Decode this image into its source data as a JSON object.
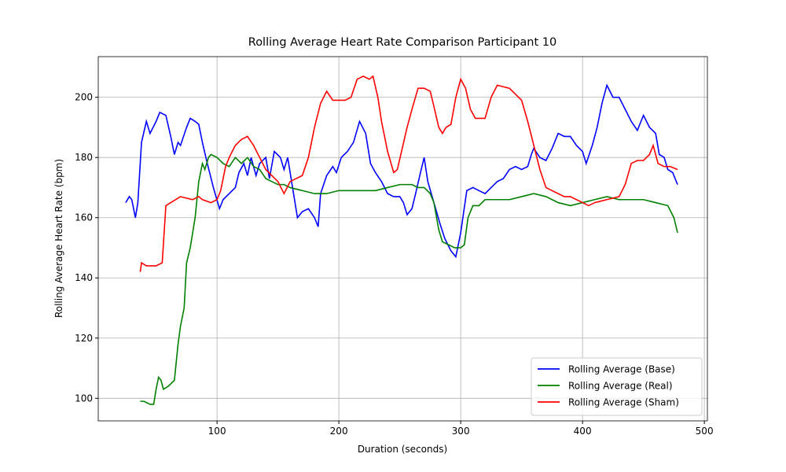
{
  "chart_data": {
    "type": "line",
    "title": "Rolling Average Heart Rate Comparison Participant 10",
    "x_label": "Duration (seconds)",
    "y_label": "Rolling Average Heart Rate (bpm)",
    "xlim": [
      2.5,
      502.5
    ],
    "ylim": [
      92.5,
      213.5
    ],
    "xticks": [
      100,
      200,
      300,
      400,
      500
    ],
    "yticks": [
      100,
      120,
      140,
      160,
      180,
      200
    ],
    "grid": true,
    "legend": "lower right",
    "series": [
      {
        "name": "Rolling Average (Base)",
        "color": "#0000ff",
        "x": [
          25,
          28,
          30,
          33,
          35,
          38,
          42,
          45,
          50,
          53,
          58,
          62,
          65,
          68,
          70,
          75,
          78,
          82,
          85,
          88,
          92,
          97,
          102,
          105,
          110,
          115,
          118,
          122,
          125,
          128,
          132,
          135,
          140,
          143,
          147,
          152,
          155,
          158,
          162,
          166,
          170,
          175,
          180,
          183,
          185,
          190,
          195,
          198,
          202,
          207,
          212,
          217,
          222,
          226,
          230,
          235,
          240,
          245,
          250,
          253,
          256,
          260,
          263,
          267,
          270,
          273,
          278,
          283,
          287,
          292,
          296,
          300,
          305,
          310,
          315,
          320,
          325,
          330,
          335,
          340,
          345,
          350,
          355,
          358,
          360,
          365,
          370,
          375,
          380,
          385,
          390,
          395,
          400,
          403,
          408,
          412,
          416,
          420,
          425,
          430,
          435,
          440,
          445,
          450,
          455,
          460,
          463,
          467,
          470,
          474,
          478
        ],
        "values": [
          165,
          167,
          166,
          160,
          165,
          185,
          192,
          188,
          192,
          195,
          194,
          187,
          181,
          185,
          184,
          190,
          193,
          192,
          191,
          185,
          178,
          170,
          163,
          166,
          168,
          170,
          175,
          178,
          174,
          180,
          174,
          178,
          180,
          173,
          182,
          180,
          176,
          180,
          170,
          160,
          162,
          163,
          160,
          157,
          168,
          174,
          177,
          175,
          180,
          182,
          185,
          192,
          188,
          178,
          175,
          172,
          168,
          167,
          167,
          165,
          161,
          163,
          168,
          175,
          180,
          172,
          165,
          158,
          153,
          149,
          147,
          155,
          169,
          170,
          169,
          168,
          170,
          172,
          173,
          176,
          177,
          176,
          177,
          181,
          183,
          180,
          179,
          183,
          188,
          187,
          187,
          184,
          182,
          178,
          184,
          190,
          198,
          204,
          200,
          200,
          196,
          192,
          189,
          194,
          190,
          188,
          181,
          180,
          176,
          175,
          171
        ]
      },
      {
        "name": "Rolling Average (Real)",
        "color": "#008000",
        "x": [
          37,
          40,
          45,
          48,
          50,
          52,
          54,
          56,
          60,
          65,
          68,
          70,
          73,
          75,
          78,
          82,
          85,
          88,
          90,
          93,
          95,
          100,
          105,
          110,
          115,
          120,
          125,
          130,
          135,
          140,
          145,
          150,
          155,
          160,
          170,
          180,
          190,
          200,
          210,
          220,
          230,
          240,
          250,
          260,
          265,
          270,
          275,
          278,
          282,
          285,
          290,
          295,
          300,
          303,
          306,
          310,
          315,
          320,
          330,
          340,
          350,
          360,
          370,
          380,
          390,
          400,
          410,
          420,
          430,
          440,
          450,
          460,
          470,
          475,
          478
        ],
        "values": [
          99,
          99,
          98,
          98,
          103,
          107,
          106,
          103,
          104,
          106,
          118,
          124,
          130,
          145,
          150,
          160,
          172,
          178,
          176,
          180,
          181,
          180,
          178,
          177,
          180,
          178,
          180,
          177,
          176,
          173,
          172,
          171,
          171,
          170,
          169,
          168,
          168,
          169,
          169,
          169,
          169,
          170,
          171,
          171,
          170,
          170,
          168,
          165,
          156,
          152,
          151,
          150,
          150,
          151,
          160,
          164,
          164,
          166,
          166,
          166,
          167,
          168,
          167,
          165,
          164,
          165,
          166,
          167,
          166,
          166,
          166,
          165,
          164,
          160,
          155
        ]
      },
      {
        "name": "Rolling Average (Sham)",
        "color": "#ff0000",
        "x": [
          37,
          38,
          42,
          50,
          55,
          58,
          62,
          70,
          80,
          85,
          88,
          95,
          100,
          103,
          107,
          110,
          115,
          120,
          125,
          130,
          135,
          140,
          145,
          150,
          155,
          160,
          165,
          170,
          175,
          180,
          185,
          190,
          195,
          200,
          205,
          210,
          215,
          220,
          225,
          228,
          232,
          235,
          240,
          245,
          248,
          252,
          256,
          260,
          265,
          270,
          275,
          278,
          282,
          285,
          288,
          292,
          296,
          300,
          304,
          308,
          312,
          320,
          325,
          330,
          340,
          345,
          350,
          355,
          360,
          365,
          370,
          375,
          380,
          385,
          390,
          395,
          400,
          405,
          410,
          420,
          430,
          435,
          440,
          445,
          450,
          455,
          458,
          462,
          467,
          472,
          478
        ],
        "values": [
          142,
          145,
          144,
          144,
          145,
          164,
          165,
          167,
          166,
          167,
          166,
          165,
          166,
          169,
          177,
          180,
          184,
          186,
          187,
          184,
          180,
          176,
          174,
          172,
          168,
          172,
          173,
          174,
          180,
          190,
          198,
          202,
          199,
          199,
          199,
          200,
          206,
          207,
          206,
          207,
          200,
          192,
          182,
          175,
          176,
          183,
          190,
          196,
          203,
          203,
          202,
          197,
          190,
          188,
          190,
          191,
          200,
          206,
          203,
          196,
          193,
          193,
          200,
          204,
          203,
          201,
          199,
          192,
          184,
          176,
          170,
          169,
          168,
          167,
          167,
          166,
          165,
          164,
          165,
          166,
          167,
          171,
          178,
          179,
          179,
          181,
          184,
          178,
          177,
          177,
          176
        ]
      }
    ]
  }
}
